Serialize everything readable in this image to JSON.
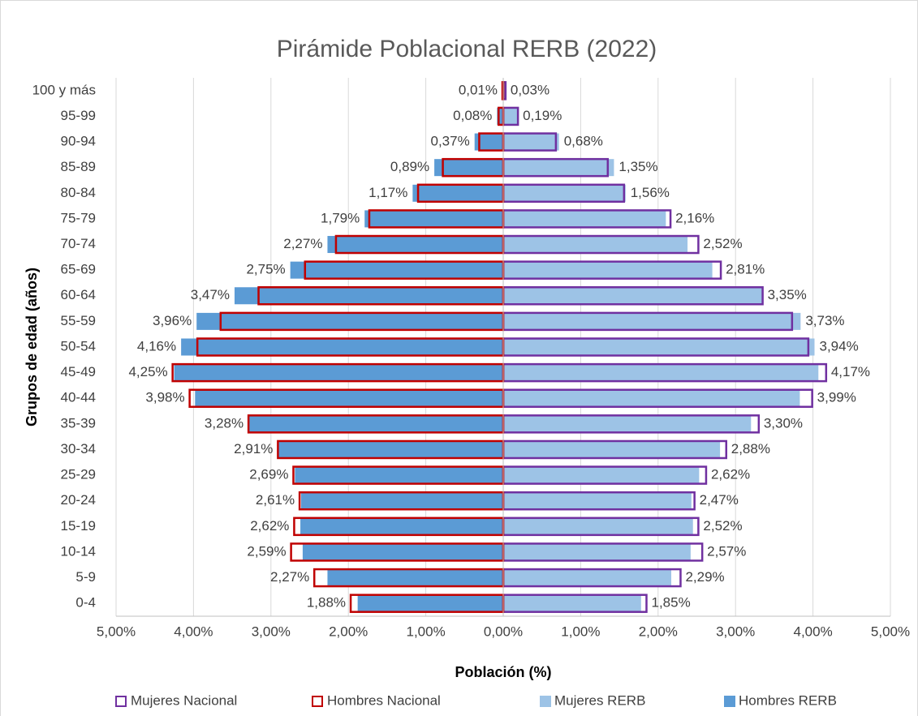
{
  "chart_data": {
    "type": "pyramid",
    "title": "Pirámide Poblacional RERB (2022)",
    "x_label": "Población (%)",
    "y_label": "Grupos de edad (años)",
    "categories": [
      "0-4",
      "5-9",
      "10-14",
      "15-19",
      "20-24",
      "25-29",
      "30-34",
      "35-39",
      "40-44",
      "45-49",
      "50-54",
      "55-59",
      "60-64",
      "65-69",
      "70-74",
      "75-79",
      "80-84",
      "85-89",
      "90-94",
      "95-99",
      "100 y más"
    ],
    "xlim": [
      -5,
      5
    ],
    "xticks": [
      {
        "value": -5,
        "label": "5,00%"
      },
      {
        "value": -4,
        "label": "4,00%"
      },
      {
        "value": -3,
        "label": "3,00%"
      },
      {
        "value": -2,
        "label": "2,00%"
      },
      {
        "value": -1,
        "label": "1,00%"
      },
      {
        "value": 0,
        "label": "0,00%"
      },
      {
        "value": 1,
        "label": "1,00%"
      },
      {
        "value": 2,
        "label": "2,00%"
      },
      {
        "value": 3,
        "label": "3,00%"
      },
      {
        "value": 4,
        "label": "4,00%"
      },
      {
        "value": 5,
        "label": "5,00%"
      }
    ],
    "grid": true,
    "legend": "bottom",
    "series": [
      {
        "name": "Mujeres Nacional",
        "color": "#7030a0",
        "style": "outline",
        "values": [
          1.85,
          2.29,
          2.57,
          2.52,
          2.47,
          2.62,
          2.88,
          3.3,
          3.99,
          4.17,
          3.94,
          3.73,
          3.35,
          2.81,
          2.52,
          2.16,
          1.56,
          1.35,
          0.68,
          0.19,
          0.03
        ],
        "value_labels": [
          "1,85%",
          "2,29%",
          "2,57%",
          "2,52%",
          "2,47%",
          "2,62%",
          "2,88%",
          "3,30%",
          "3,99%",
          "4,17%",
          "3,94%",
          "3,73%",
          "3,35%",
          "2,81%",
          "2,52%",
          "2,16%",
          "1,56%",
          "1,35%",
          "0,68%",
          "0,19%",
          "0,03%"
        ]
      },
      {
        "name": "Hombres Nacional",
        "color": "#c00000",
        "style": "outline",
        "values": [
          -1.97,
          -2.44,
          -2.74,
          -2.7,
          -2.63,
          -2.71,
          -2.91,
          -3.29,
          -4.05,
          -4.27,
          -3.95,
          -3.65,
          -3.16,
          -2.56,
          -2.16,
          -1.73,
          -1.1,
          -0.78,
          -0.31,
          -0.06,
          -0.01
        ]
      },
      {
        "name": "Mujeres RERB",
        "color": "#9dc3e6",
        "style": "fill",
        "values": [
          1.78,
          2.17,
          2.42,
          2.45,
          2.43,
          2.53,
          2.8,
          3.2,
          3.83,
          4.07,
          4.02,
          3.84,
          3.35,
          2.7,
          2.38,
          2.1,
          1.58,
          1.43,
          0.72,
          0.18,
          0.02
        ]
      },
      {
        "name": "Hombres RERB",
        "color": "#5b9bd5",
        "style": "fill",
        "values": [
          -1.88,
          -2.27,
          -2.59,
          -2.62,
          -2.61,
          -2.69,
          -2.91,
          -3.28,
          -3.98,
          -4.25,
          -4.16,
          -3.96,
          -3.47,
          -2.75,
          -2.27,
          -1.79,
          -1.17,
          -0.89,
          -0.37,
          -0.08,
          -0.01
        ],
        "value_labels": [
          "1,88%",
          "2,27%",
          "2,59%",
          "2,62%",
          "2,61%",
          "2,69%",
          "2,91%",
          "3,28%",
          "3,98%",
          "4,25%",
          "4,16%",
          "3,96%",
          "3,47%",
          "2,75%",
          "2,27%",
          "1,79%",
          "1,17%",
          "0,89%",
          "0,37%",
          "0,08%",
          "0,01%"
        ]
      }
    ]
  }
}
